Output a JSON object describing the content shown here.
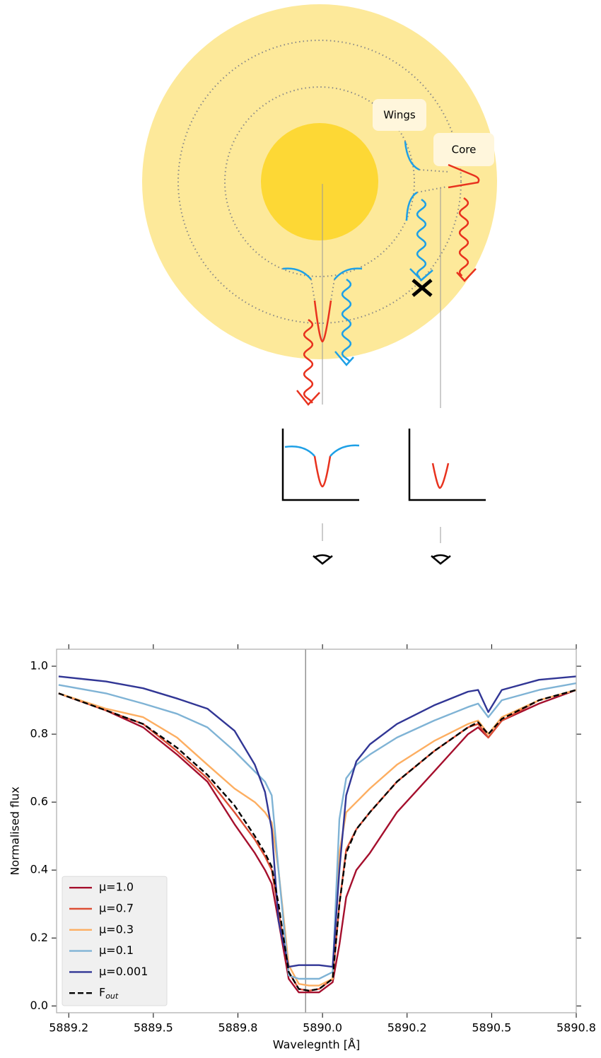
{
  "diagram": {
    "labels": [
      "Wings",
      "Core"
    ]
  },
  "chart_data": {
    "type": "line",
    "xlabel": "Wavelegnth [Å]",
    "ylabel": "Normalised flux",
    "x": [
      5889.22,
      5889.36,
      5889.47,
      5889.57,
      5889.66,
      5889.74,
      5889.8,
      5889.83,
      5889.85,
      5889.87,
      5889.9,
      5889.93,
      5889.96,
      5889.99,
      5890.03,
      5890.05,
      5890.07,
      5890.1,
      5890.14,
      5890.22,
      5890.33,
      5890.43,
      5890.46,
      5890.49,
      5890.53,
      5890.64,
      5890.75
    ],
    "series": [
      {
        "name": "μ=1.0",
        "color": "#a50f2d",
        "values": [
          0.92,
          0.87,
          0.82,
          0.74,
          0.66,
          0.535,
          0.45,
          0.4,
          0.36,
          0.25,
          0.08,
          0.04,
          0.04,
          0.04,
          0.07,
          0.18,
          0.32,
          0.4,
          0.45,
          0.57,
          0.69,
          0.8,
          0.82,
          0.79,
          0.84,
          0.89,
          0.93
        ]
      },
      {
        "name": "μ=0.7",
        "color": "#dd4f35",
        "values": [
          0.92,
          0.87,
          0.83,
          0.75,
          0.67,
          0.57,
          0.49,
          0.44,
          0.4,
          0.28,
          0.1,
          0.05,
          0.045,
          0.05,
          0.08,
          0.3,
          0.46,
          0.52,
          0.57,
          0.66,
          0.75,
          0.82,
          0.83,
          0.79,
          0.84,
          0.9,
          0.93
        ]
      },
      {
        "name": "μ=0.3",
        "color": "#fdae61",
        "values": [
          0.92,
          0.875,
          0.85,
          0.79,
          0.71,
          0.64,
          0.6,
          0.57,
          0.54,
          0.4,
          0.12,
          0.065,
          0.06,
          0.06,
          0.08,
          0.45,
          0.57,
          0.6,
          0.64,
          0.71,
          0.78,
          0.83,
          0.84,
          0.8,
          0.85,
          0.9,
          0.93
        ]
      },
      {
        "name": "μ=0.1",
        "color": "#7fb3d5",
        "values": [
          0.945,
          0.92,
          0.89,
          0.86,
          0.82,
          0.75,
          0.69,
          0.66,
          0.62,
          0.4,
          0.09,
          0.08,
          0.08,
          0.08,
          0.1,
          0.55,
          0.67,
          0.71,
          0.74,
          0.79,
          0.84,
          0.88,
          0.89,
          0.85,
          0.9,
          0.93,
          0.95
        ]
      },
      {
        "name": "μ=0.001",
        "color": "#313695",
        "values": [
          0.97,
          0.955,
          0.935,
          0.905,
          0.875,
          0.81,
          0.71,
          0.63,
          0.52,
          0.25,
          0.115,
          0.12,
          0.12,
          0.12,
          0.115,
          0.4,
          0.62,
          0.72,
          0.77,
          0.83,
          0.885,
          0.925,
          0.93,
          0.865,
          0.93,
          0.96,
          0.97
        ]
      },
      {
        "name": "F",
        "name_subscript": "out",
        "color": "#000000",
        "linestyle": "dashed",
        "values": [
          0.92,
          0.87,
          0.83,
          0.76,
          0.68,
          0.59,
          0.5,
          0.45,
          0.41,
          0.3,
          0.1,
          0.05,
          0.045,
          0.05,
          0.08,
          0.3,
          0.45,
          0.52,
          0.57,
          0.66,
          0.75,
          0.82,
          0.835,
          0.8,
          0.845,
          0.9,
          0.93
        ]
      }
    ],
    "vline": 5889.95,
    "xlim": [
      5889.214,
      5890.75
    ],
    "xticks": [
      {
        "value": 5889.25,
        "label": "5889.2"
      },
      5889.5,
      {
        "value": 5889.75,
        "label": "5889.8"
      },
      {
        "value": 5890,
        "label": "5890.0"
      },
      {
        "value": 5890.25,
        "label": "5890.2"
      },
      5890.5,
      {
        "value": 5890.75,
        "label": "5890.8"
      }
    ],
    "ylim": [
      -0.02,
      1.05
    ],
    "yticks": [
      {
        "value": 0,
        "label": "0.0"
      },
      0.2,
      0.4,
      0.6,
      0.8,
      {
        "value": 1,
        "label": "1.0"
      }
    ],
    "legend": "lower left"
  }
}
